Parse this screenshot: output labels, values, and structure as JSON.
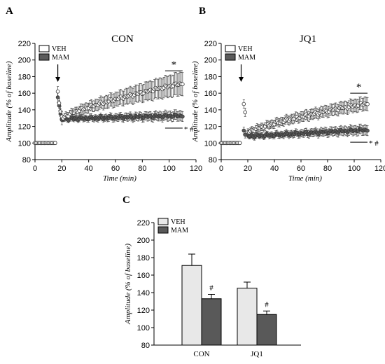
{
  "chart_data": [
    {
      "panel": "A",
      "type": "scatter",
      "title": "CON",
      "xlabel": "Time (min)",
      "ylabel": "Amplitude (% of baseline)",
      "xlim": [
        0,
        120
      ],
      "ylim": [
        80,
        220
      ],
      "xticks": [
        "0",
        "20",
        "40",
        "60",
        "80",
        "100",
        "120"
      ],
      "yticks": [
        "80",
        "100",
        "120",
        "140",
        "160",
        "180",
        "200",
        "220"
      ],
      "legend": [
        "VEH",
        "MAM"
      ],
      "arrow_x": 17,
      "significance": [
        {
          "symbol": "*",
          "x_range": [
            97,
            110
          ],
          "y": 187
        },
        {
          "symbol": "* #",
          "x_range": [
            97,
            110
          ],
          "y": 118
        }
      ],
      "series": [
        {
          "name": "VEH",
          "pre_x": [
            0,
            15
          ],
          "pre_y": 100,
          "pre_err": 2,
          "post_x": [
            17,
            18,
            19,
            20
          ],
          "post_y": [
            162,
            148,
            138,
            132
          ],
          "post_err": [
            6,
            6,
            6,
            6
          ],
          "x_range": [
            21,
            110
          ],
          "y_start": 130,
          "y_end": 172,
          "err_start": 4,
          "err_end": 14
        },
        {
          "name": "MAM",
          "pre_x": [
            0,
            15
          ],
          "pre_y": 100,
          "pre_err": 2,
          "post_x": [
            17,
            18,
            19,
            20
          ],
          "post_y": [
            155,
            145,
            135,
            128
          ],
          "post_err": [
            6,
            6,
            6,
            6
          ],
          "x_range": [
            21,
            110
          ],
          "y_start": 129,
          "y_end": 133,
          "err_start": 3,
          "err_end": 6
        }
      ]
    },
    {
      "panel": "B",
      "type": "scatter",
      "title": "JQ1",
      "xlabel": "Time (min)",
      "ylabel": "Amplitude (% of baseline)",
      "xlim": [
        0,
        120
      ],
      "ylim": [
        80,
        220
      ],
      "xticks": [
        "0",
        "20",
        "40",
        "60",
        "80",
        "100",
        "120"
      ],
      "yticks": [
        "80",
        "100",
        "120",
        "140",
        "160",
        "180",
        "200",
        "220"
      ],
      "legend": [
        "VEH",
        "MAM"
      ],
      "arrow_x": 15,
      "significance": [
        {
          "symbol": "*",
          "x_range": [
            97,
            110
          ],
          "y": 160
        },
        {
          "symbol": "* #",
          "x_range": [
            97,
            110
          ],
          "y": 101
        }
      ],
      "series": [
        {
          "name": "VEH",
          "pre_x": [
            0,
            14
          ],
          "pre_y": 100,
          "pre_err": 1.5,
          "post_x": [
            17,
            18
          ],
          "post_y": [
            147,
            137
          ],
          "post_err": [
            5,
            5
          ],
          "x_range": [
            20,
            110
          ],
          "y_start": 112,
          "y_end": 148,
          "err_start": 4,
          "err_end": 8
        },
        {
          "name": "MAM",
          "pre_x": [
            0,
            14
          ],
          "pre_y": 100,
          "pre_err": 1.5,
          "post_x": [
            17,
            18
          ],
          "post_y": [
            115,
            110
          ],
          "post_err": [
            4,
            4
          ],
          "x_range": [
            20,
            110
          ],
          "y_start": 108,
          "y_end": 116,
          "err_start": 3,
          "err_end": 6
        }
      ]
    },
    {
      "panel": "C",
      "type": "bar",
      "categories": [
        "CON",
        "JQ1"
      ],
      "ylabel": "Amplitude (% of baseline)",
      "ylim": [
        80,
        220
      ],
      "yticks": [
        "80",
        "100",
        "120",
        "140",
        "160",
        "180",
        "200",
        "220"
      ],
      "legend": [
        "VEH",
        "MAM"
      ],
      "series": [
        {
          "name": "VEH",
          "values": [
            171,
            145
          ],
          "errors": [
            13,
            7
          ],
          "color": "#e8e8e8"
        },
        {
          "name": "MAM",
          "values": [
            133,
            115
          ],
          "errors": [
            5,
            4
          ],
          "color": "#595959"
        }
      ],
      "annotations": [
        {
          "symbol": "#",
          "category": 0,
          "series": 1
        },
        {
          "symbol": "#",
          "category": 1,
          "series": 1
        }
      ]
    }
  ]
}
